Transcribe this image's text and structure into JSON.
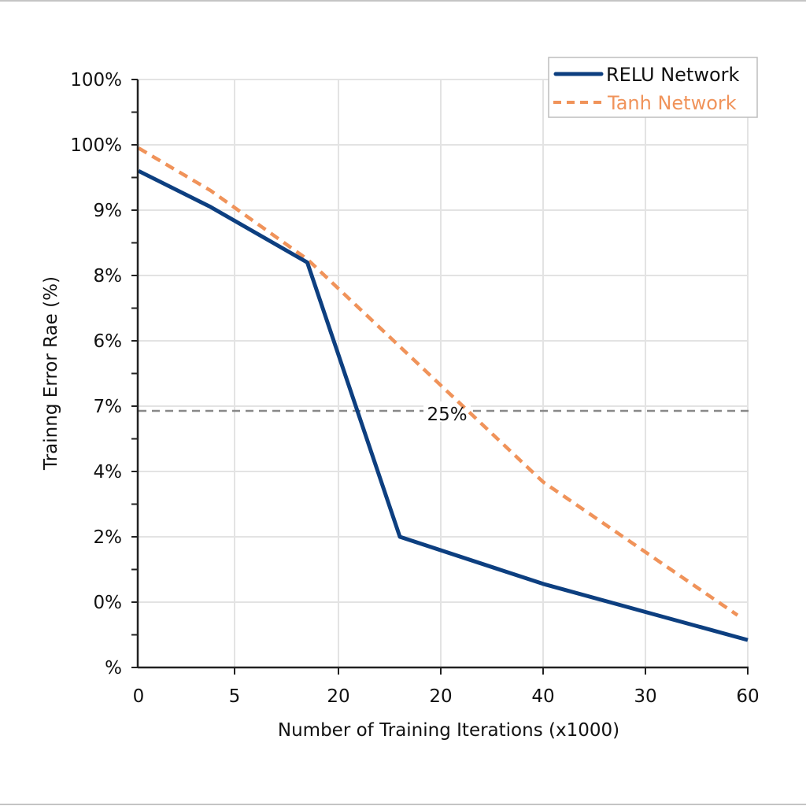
{
  "chart_data": {
    "type": "line",
    "title": "",
    "xlabel": "Number of Training Iterations (x1000)",
    "ylabel": "Trainng Error Rae (%)",
    "x_tick_labels": [
      "0",
      "5",
      "20",
      "20",
      "40",
      "30",
      "60"
    ],
    "y_tick_labels": [
      "%",
      "0%",
      "2%",
      "4%",
      "7%",
      "6%",
      "8%",
      "9%",
      "100%",
      "100%"
    ],
    "value_units": "tick index (ticks are evenly spaced; printed tick labels are non-monotonic)",
    "xlim": [
      0,
      6
    ],
    "ylim": [
      0,
      9
    ],
    "grid": true,
    "legend_position": "top-right",
    "series": [
      {
        "name": "RELU Network",
        "style": "solid",
        "color": "#0d3f80",
        "x": [
          0,
          0.75,
          1.7,
          2.6,
          4,
          5,
          6
        ],
        "y": [
          7.6,
          7.05,
          6.2,
          2.0,
          1.28,
          0.85,
          0.42
        ]
      },
      {
        "name": "Tanh Network",
        "style": "dashed",
        "color": "#f0935a",
        "x": [
          0,
          0.75,
          1.7,
          4,
          5.9
        ],
        "y": [
          7.95,
          7.3,
          6.25,
          2.84,
          0.8
        ]
      }
    ],
    "reference_line": {
      "y": 4,
      "label": "25%",
      "color": "#888888",
      "style": "dashed"
    }
  }
}
